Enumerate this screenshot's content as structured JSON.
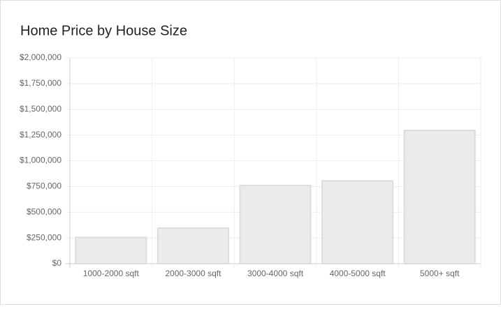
{
  "chart_data": {
    "type": "bar",
    "title": "Home Price by House Size",
    "categories": [
      "1000-2000 sqft",
      "2000-3000 sqft",
      "3000-4000 sqft",
      "4000-5000 sqft",
      "5000+ sqft"
    ],
    "values": [
      255000,
      345000,
      760000,
      805000,
      1295000
    ],
    "color": "#ebebeb",
    "ylim": [
      0,
      2000000
    ],
    "yticks": [
      {
        "value": 0,
        "label": "$0"
      },
      {
        "value": 250000,
        "label": "$250,000"
      },
      {
        "value": 500000,
        "label": "$500,000"
      },
      {
        "value": 750000,
        "label": "$750,000"
      },
      {
        "value": 1000000,
        "label": "$1,000,000"
      },
      {
        "value": 1250000,
        "label": "$1,250,000"
      },
      {
        "value": 1500000,
        "label": "$1,500,000"
      },
      {
        "value": 1750000,
        "label": "$1,750,000"
      },
      {
        "value": 2000000,
        "label": "$2,000,000"
      }
    ],
    "grid": true
  }
}
